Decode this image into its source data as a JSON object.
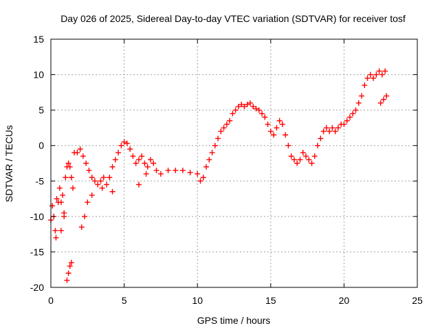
{
  "chart_data": {
    "type": "scatter",
    "title": "Day 026 of 2025, Sidereal Day-to-day VTEC variation (SDTVAR) for receiver tosf",
    "xlabel": "GPS time / hours",
    "ylabel": "SDTVAR / TECUs",
    "xlim": [
      0,
      25
    ],
    "ylim": [
      -20,
      15
    ],
    "xticks": [
      0,
      5,
      10,
      15,
      20,
      25
    ],
    "yticks": [
      -20,
      -15,
      -10,
      -5,
      0,
      5,
      10,
      15
    ],
    "grid": true,
    "marker": "+",
    "color": "#ff0000",
    "series": [
      {
        "name": "SDTVAR",
        "points": [
          [
            0.0,
            -10.5
          ],
          [
            0.1,
            -8.5
          ],
          [
            0.2,
            -10.0
          ],
          [
            0.3,
            -12.0
          ],
          [
            0.35,
            -13.0
          ],
          [
            0.4,
            -7.5
          ],
          [
            0.5,
            -8.0
          ],
          [
            0.6,
            -6.0
          ],
          [
            0.7,
            -8.0
          ],
          [
            0.8,
            -7.0
          ],
          [
            0.9,
            -9.5
          ],
          [
            1.0,
            -4.5
          ],
          [
            1.1,
            -3.0
          ],
          [
            1.2,
            -2.5
          ],
          [
            1.3,
            -3.0
          ],
          [
            1.4,
            -4.5
          ],
          [
            1.5,
            -6.0
          ],
          [
            1.6,
            -1.0
          ],
          [
            1.8,
            -1.0
          ],
          [
            2.0,
            -0.5
          ],
          [
            2.2,
            -1.5
          ],
          [
            2.4,
            -2.5
          ],
          [
            2.6,
            -3.5
          ],
          [
            2.8,
            -4.5
          ],
          [
            3.0,
            -5.0
          ],
          [
            3.2,
            -5.5
          ],
          [
            3.4,
            -5.0
          ],
          [
            3.6,
            -4.5
          ],
          [
            3.8,
            -5.5
          ],
          [
            4.0,
            -4.5
          ],
          [
            4.2,
            -3.0
          ],
          [
            4.4,
            -2.0
          ],
          [
            4.6,
            -1.0
          ],
          [
            4.8,
            0.0
          ],
          [
            5.0,
            0.5
          ],
          [
            5.2,
            0.3
          ],
          [
            5.4,
            -0.5
          ],
          [
            5.6,
            -1.5
          ],
          [
            5.8,
            -2.5
          ],
          [
            6.0,
            -2.0
          ],
          [
            6.2,
            -1.5
          ],
          [
            6.4,
            -2.5
          ],
          [
            6.6,
            -3.0
          ],
          [
            6.8,
            -2.0
          ],
          [
            7.0,
            -2.5
          ],
          [
            7.2,
            -3.5
          ],
          [
            7.5,
            -4.0
          ],
          [
            8.0,
            -3.5
          ],
          [
            8.5,
            -3.5
          ],
          [
            9.0,
            -3.5
          ],
          [
            9.5,
            -3.8
          ],
          [
            10.0,
            -4.0
          ],
          [
            10.2,
            -5.0
          ],
          [
            10.4,
            -4.5
          ],
          [
            10.6,
            -3.0
          ],
          [
            10.8,
            -2.0
          ],
          [
            11.0,
            -1.0
          ],
          [
            11.2,
            0.0
          ],
          [
            11.4,
            1.0
          ],
          [
            11.6,
            2.0
          ],
          [
            11.8,
            2.5
          ],
          [
            12.0,
            3.0
          ],
          [
            12.2,
            3.5
          ],
          [
            12.4,
            4.5
          ],
          [
            12.6,
            5.0
          ],
          [
            12.8,
            5.5
          ],
          [
            13.0,
            5.8
          ],
          [
            13.2,
            5.5
          ],
          [
            13.4,
            5.8
          ],
          [
            13.6,
            6.0
          ],
          [
            13.8,
            5.5
          ],
          [
            14.0,
            5.2
          ],
          [
            14.2,
            5.0
          ],
          [
            14.4,
            4.5
          ],
          [
            14.6,
            4.0
          ],
          [
            14.8,
            3.0
          ],
          [
            15.0,
            2.0
          ],
          [
            15.2,
            1.5
          ],
          [
            15.4,
            2.5
          ],
          [
            15.6,
            3.5
          ],
          [
            15.8,
            3.0
          ],
          [
            16.0,
            1.5
          ],
          [
            16.2,
            0.0
          ],
          [
            16.4,
            -1.5
          ],
          [
            16.6,
            -2.0
          ],
          [
            16.8,
            -2.5
          ],
          [
            17.0,
            -2.0
          ],
          [
            17.2,
            -1.0
          ],
          [
            17.4,
            -1.5
          ],
          [
            17.6,
            -2.0
          ],
          [
            17.8,
            -2.5
          ],
          [
            18.0,
            -1.5
          ],
          [
            18.2,
            0.0
          ],
          [
            18.4,
            1.0
          ],
          [
            18.6,
            2.0
          ],
          [
            18.8,
            2.5
          ],
          [
            19.0,
            2.0
          ],
          [
            19.2,
            2.5
          ],
          [
            19.4,
            2.0
          ],
          [
            19.6,
            2.5
          ],
          [
            19.8,
            3.0
          ],
          [
            20.0,
            3.0
          ],
          [
            20.2,
            3.5
          ],
          [
            20.4,
            4.0
          ],
          [
            20.6,
            4.5
          ],
          [
            20.8,
            5.0
          ],
          [
            21.0,
            6.0
          ],
          [
            21.2,
            7.0
          ],
          [
            21.4,
            8.5
          ],
          [
            21.6,
            9.5
          ],
          [
            21.8,
            10.0
          ],
          [
            22.0,
            9.5
          ],
          [
            22.2,
            10.0
          ],
          [
            22.4,
            10.5
          ],
          [
            22.6,
            10.0
          ],
          [
            22.8,
            10.5
          ],
          [
            22.5,
            6.0
          ],
          [
            22.7,
            6.5
          ],
          [
            22.9,
            7.0
          ],
          [
            1.1,
            -19.0
          ],
          [
            1.2,
            -18.0
          ],
          [
            1.3,
            -17.0
          ],
          [
            1.4,
            -16.5
          ],
          [
            0.7,
            -12.0
          ],
          [
            0.9,
            -10.0
          ],
          [
            2.1,
            -11.5
          ],
          [
            2.3,
            -10.0
          ],
          [
            2.5,
            -8.0
          ],
          [
            2.8,
            -7.0
          ],
          [
            3.5,
            -6.0
          ],
          [
            4.2,
            -6.5
          ],
          [
            6.0,
            -5.5
          ],
          [
            6.5,
            -4.0
          ]
        ]
      }
    ]
  }
}
